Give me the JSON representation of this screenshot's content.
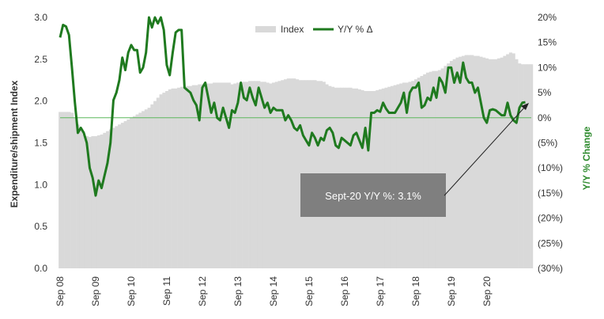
{
  "chart_data": {
    "type": "bar+line",
    "title": "",
    "y_left_label": "Expenditure/shipment Index",
    "y_right_label": "Y/Y % Change",
    "y_left_range": [
      0.0,
      3.0
    ],
    "y_right_range": [
      -30,
      20
    ],
    "y_left_ticks": [
      "0.0",
      "0.5",
      "1.0",
      "1.5",
      "2.0",
      "2.5",
      "3.0"
    ],
    "y_right_ticks": [
      "(30%)",
      "(25%)",
      "(20%)",
      "(15%)",
      "(10%)",
      "(5%)",
      "0%",
      "5%",
      "10%",
      "15%",
      "20%"
    ],
    "x_ticks": [
      "Sep 08",
      "Sep 09",
      "Sep 10",
      "Sep 11",
      "Sep 12",
      "Sep 13",
      "Sep 14",
      "Sep 15",
      "Sep 16",
      "Sep 17",
      "Sep 18",
      "Sep 19",
      "Sep 20"
    ],
    "legend": {
      "position": "top-center",
      "items": [
        {
          "label": "Index",
          "color": "#d9d9d9"
        },
        {
          "label": "Y/Y % Δ",
          "color": "#1f7a1f"
        }
      ]
    },
    "annotation": {
      "text": "Sept-20 Y/Y %: 3.1%",
      "points_to": "Sep 20"
    },
    "colors": {
      "index": "#d9d9d9",
      "yoy": "#1f7a1f",
      "zero_line": "#5cb85c",
      "right_axis_title": "#2e8b2e",
      "annotation_box": "#7f7f7f"
    },
    "series": [
      {
        "name": "Index",
        "kind": "bar",
        "axis": "left",
        "x_start": "Sep 08",
        "frequency": "monthly",
        "values": [
          1.87,
          1.87,
          1.87,
          1.87,
          1.86,
          1.8,
          1.72,
          1.65,
          1.6,
          1.58,
          1.57,
          1.58,
          1.58,
          1.59,
          1.6,
          1.62,
          1.64,
          1.66,
          1.68,
          1.7,
          1.72,
          1.74,
          1.76,
          1.78,
          1.8,
          1.82,
          1.84,
          1.86,
          1.88,
          1.9,
          1.92,
          1.96,
          2.0,
          2.04,
          2.08,
          2.1,
          2.12,
          2.14,
          2.15,
          2.15,
          2.16,
          2.17,
          2.17,
          2.18,
          2.18,
          2.19,
          2.19,
          2.2,
          2.2,
          2.21,
          2.21,
          2.21,
          2.22,
          2.22,
          2.22,
          2.22,
          2.22,
          2.22,
          2.2,
          2.21,
          2.22,
          2.22,
          2.23,
          2.23,
          2.24,
          2.24,
          2.24,
          2.24,
          2.23,
          2.23,
          2.22,
          2.21,
          2.22,
          2.23,
          2.24,
          2.25,
          2.26,
          2.27,
          2.27,
          2.27,
          2.26,
          2.25,
          2.25,
          2.25,
          2.25,
          2.25,
          2.25,
          2.24,
          2.24,
          2.23,
          2.2,
          2.18,
          2.17,
          2.16,
          2.16,
          2.16,
          2.16,
          2.16,
          2.16,
          2.15,
          2.15,
          2.14,
          2.13,
          2.12,
          2.12,
          2.12,
          2.12,
          2.13,
          2.14,
          2.15,
          2.16,
          2.17,
          2.18,
          2.19,
          2.2,
          2.21,
          2.22,
          2.22,
          2.23,
          2.24,
          2.26,
          2.28,
          2.3,
          2.32,
          2.34,
          2.35,
          2.36,
          2.36,
          2.37,
          2.39,
          2.42,
          2.45,
          2.48,
          2.5,
          2.52,
          2.53,
          2.54,
          2.55,
          2.55,
          2.55,
          2.54,
          2.54,
          2.53,
          2.52,
          2.51,
          2.5,
          2.5,
          2.5,
          2.51,
          2.52,
          2.54,
          2.56,
          2.58,
          2.57,
          2.5,
          2.45,
          2.44,
          2.44,
          2.44,
          2.44
        ]
      },
      {
        "name": "Y/Y % Δ",
        "kind": "line",
        "axis": "right",
        "x_start": "Sep 08",
        "frequency": "monthly",
        "values": [
          16,
          18.5,
          18.2,
          16.5,
          10,
          3,
          -3,
          -2,
          -3,
          -5,
          -10,
          -12,
          -15.5,
          -12.5,
          -14,
          -11.5,
          -9,
          -5,
          3.5,
          5,
          7.5,
          12,
          9.5,
          13,
          14.5,
          13.5,
          13.5,
          9,
          10,
          13,
          20,
          18,
          20,
          18.8,
          20,
          17.5,
          10.5,
          8.5,
          13,
          17,
          17.5,
          17.5,
          6,
          5.5,
          5,
          3.5,
          2.5,
          -0.5,
          6,
          7,
          4,
          1,
          3,
          0,
          -0.5,
          2,
          0,
          -2,
          1.5,
          1,
          3,
          7,
          4,
          3.5,
          6,
          4,
          2.5,
          6,
          4,
          2,
          3,
          1,
          2,
          1.5,
          1.5,
          1.5,
          -0.5,
          0.5,
          -0.5,
          -2,
          -2.5,
          -1.5,
          -3.5,
          -4.5,
          -5.5,
          -3,
          -4,
          -5.5,
          -4,
          -4.5,
          -2.5,
          -2,
          -3,
          -5.5,
          -6,
          -4,
          -4.5,
          -5,
          -5.5,
          -3.5,
          -3,
          -4.5,
          -6,
          -2,
          -6.5,
          1,
          1,
          1.5,
          1.2,
          3,
          1.8,
          1,
          1,
          1,
          2,
          3,
          5,
          1,
          5,
          6,
          6,
          7,
          2,
          2.5,
          4,
          3.5,
          6,
          4,
          8,
          7,
          5,
          10,
          10,
          7,
          9,
          7,
          11,
          8,
          7,
          7,
          5,
          6,
          3,
          0,
          -1,
          1.5,
          1.7,
          1.5,
          1,
          0.5,
          0.5,
          3,
          0.5,
          -0.5,
          -1,
          2,
          3,
          3.1
        ]
      }
    ]
  }
}
